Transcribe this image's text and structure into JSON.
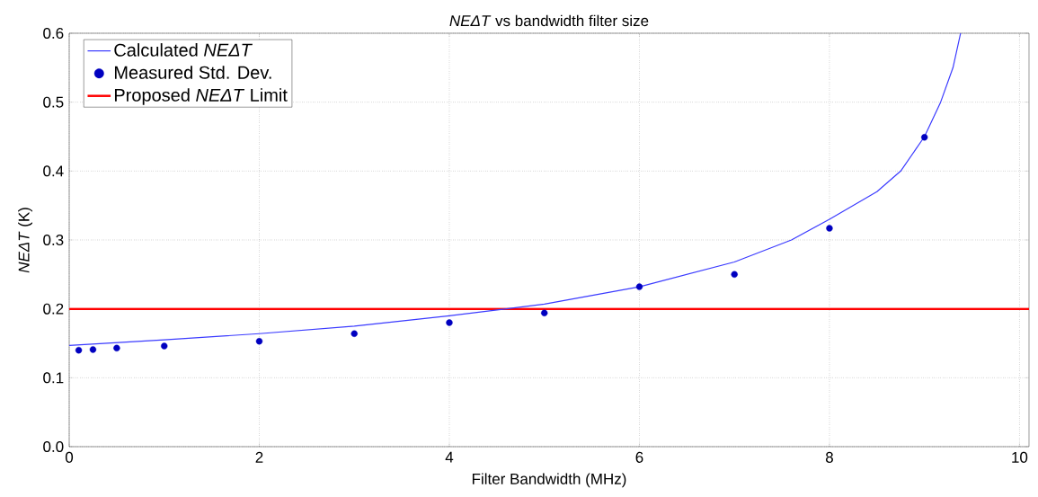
{
  "chart_data": {
    "type": "scatter",
    "title": "*NEΔT* vs bandwidth filter size",
    "xlabel": "Filter Bandwidth (MHz)",
    "ylabel": "*NEΔT* (K)",
    "xlim": [
      0,
      10.1
    ],
    "ylim": [
      0,
      0.6
    ],
    "xticks": [
      0,
      2,
      4,
      6,
      8,
      10
    ],
    "yticks": [
      {
        "value": 0,
        "label": "0.0"
      },
      0.1,
      0.2,
      0.3,
      0.4,
      0.5,
      0.6
    ],
    "grid": true,
    "legend": "top left",
    "series": [
      {
        "name": "Calculated *NEΔT*",
        "type": "line",
        "color": "#3b3bff",
        "marker": "none",
        "x": [
          0,
          1,
          2,
          3,
          4,
          4.6,
          5,
          6,
          7,
          7.6,
          8,
          8.5,
          8.75,
          9,
          9.17,
          9.3,
          9.38
        ],
        "values": [
          0.147,
          0.155,
          0.164,
          0.175,
          0.19,
          0.2,
          0.207,
          0.232,
          0.268,
          0.3,
          0.33,
          0.37,
          0.4,
          0.45,
          0.5,
          0.55,
          0.6
        ]
      },
      {
        "name": "Measured Std. Dev.",
        "color": "#0000c0",
        "marker": "circle",
        "x": [
          0.1,
          0.25,
          0.5,
          1,
          2,
          3,
          4,
          5,
          6,
          7,
          8,
          9
        ],
        "values": [
          0.14,
          0.141,
          0.143,
          0.146,
          0.153,
          0.164,
          0.18,
          0.194,
          0.232,
          0.25,
          0.317,
          0.449
        ]
      }
    ],
    "ref_lines": [
      {
        "axis": "y",
        "value": 0.2,
        "label": "Proposed *NEΔT* Limit",
        "color": "#ff0000"
      }
    ]
  }
}
